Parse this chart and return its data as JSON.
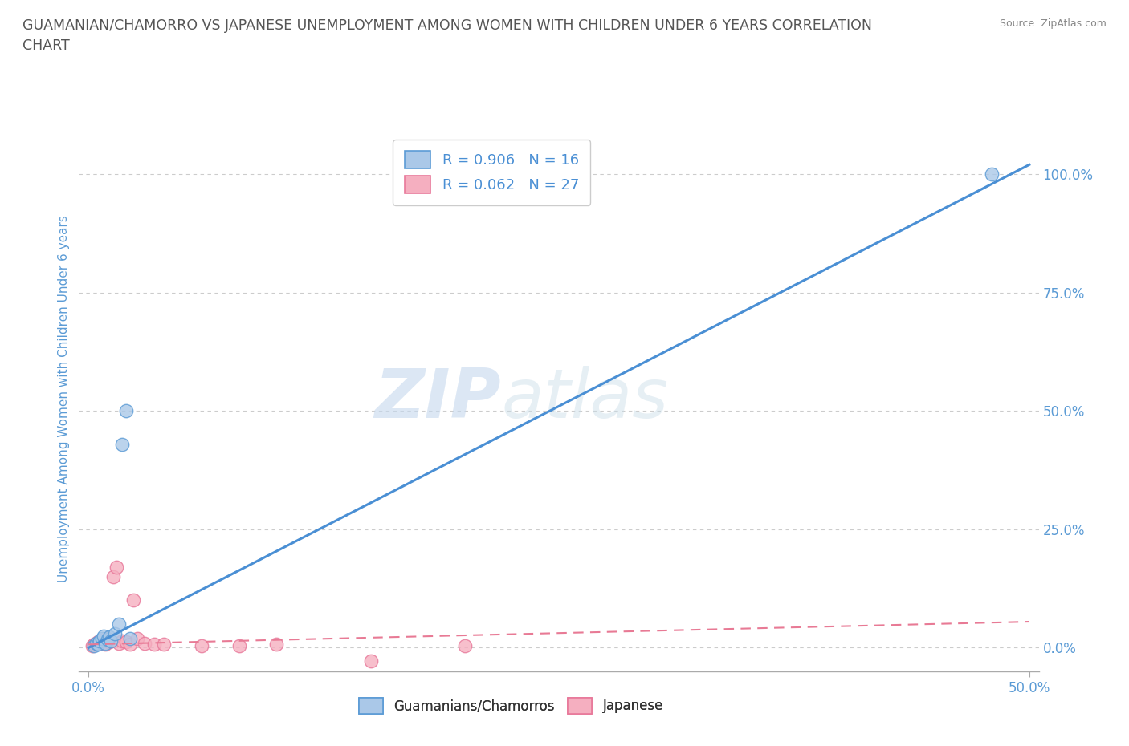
{
  "title_line1": "GUAMANIAN/CHAMORRO VS JAPANESE UNEMPLOYMENT AMONG WOMEN WITH CHILDREN UNDER 6 YEARS CORRELATION",
  "title_line2": "CHART",
  "source": "Source: ZipAtlas.com",
  "ylabel": "Unemployment Among Women with Children Under 6 years",
  "xlim": [
    -0.005,
    0.505
  ],
  "ylim": [
    -0.05,
    1.1
  ],
  "yticks": [
    0.0,
    0.25,
    0.5,
    0.75,
    1.0
  ],
  "yticklabels": [
    "0.0%",
    "25.0%",
    "50.0%",
    "75.0%",
    "100.0%"
  ],
  "xtick_left": 0.0,
  "xtick_right": 0.5,
  "xticklabel_left": "0.0%",
  "xticklabel_right": "50.0%",
  "watermark_zip": "ZIP",
  "watermark_atlas": "atlas",
  "legend_labels": [
    "Guamanians/Chamorros",
    "Japanese"
  ],
  "R_guam": "0.906",
  "N_guam": "16",
  "R_japan": "0.062",
  "N_japan": "27",
  "guam_face_color": "#aac8e8",
  "japan_face_color": "#f5afc0",
  "guam_edge_color": "#5b9bd5",
  "japan_edge_color": "#e8789a",
  "guam_line_color": "#4a8fd4",
  "japan_line_color": "#e87a95",
  "background_color": "#ffffff",
  "grid_color": "#cccccc",
  "title_color": "#555555",
  "axis_label_color": "#5b9bd5",
  "tick_color": "#5b9bd5",
  "guam_scatter_x": [
    0.003,
    0.004,
    0.005,
    0.006,
    0.007,
    0.008,
    0.009,
    0.01,
    0.011,
    0.012,
    0.014,
    0.016,
    0.018,
    0.02,
    0.022,
    0.48
  ],
  "guam_scatter_y": [
    0.005,
    0.01,
    0.008,
    0.015,
    0.02,
    0.025,
    0.01,
    0.018,
    0.022,
    0.015,
    0.03,
    0.05,
    0.43,
    0.5,
    0.02,
    1.0
  ],
  "japan_scatter_x": [
    0.002,
    0.003,
    0.004,
    0.005,
    0.006,
    0.007,
    0.008,
    0.009,
    0.01,
    0.011,
    0.012,
    0.013,
    0.015,
    0.016,
    0.018,
    0.02,
    0.022,
    0.024,
    0.026,
    0.03,
    0.035,
    0.04,
    0.06,
    0.08,
    0.1,
    0.15,
    0.2
  ],
  "japan_scatter_y": [
    0.005,
    0.008,
    0.01,
    0.012,
    0.015,
    0.01,
    0.018,
    0.008,
    0.02,
    0.012,
    0.015,
    0.15,
    0.17,
    0.01,
    0.015,
    0.012,
    0.008,
    0.1,
    0.02,
    0.01,
    0.008,
    0.008,
    0.005,
    0.005,
    0.008,
    -0.028,
    0.005
  ],
  "guam_trend_x0": 0.0,
  "guam_trend_y0": 0.0,
  "guam_trend_x1": 0.5,
  "guam_trend_y1": 1.02,
  "japan_trend_x0": 0.0,
  "japan_trend_y0": 0.007,
  "japan_trend_x1": 0.5,
  "japan_trend_y1": 0.055
}
